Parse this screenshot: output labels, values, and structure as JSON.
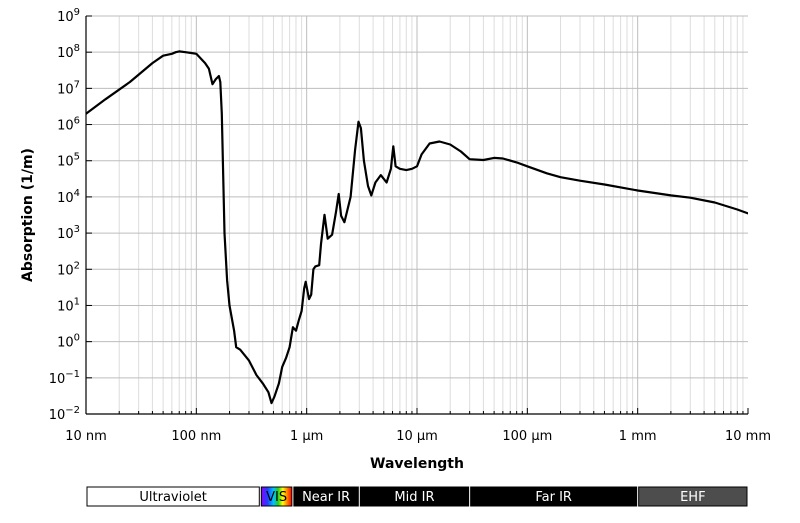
{
  "chart_data": {
    "type": "line",
    "xlabel": "Wavelength",
    "ylabel": "Absorption (1/m)",
    "x_scale": "log",
    "y_scale": "log",
    "x_unit": "m",
    "xlim": [
      1e-08,
      0.01
    ],
    "ylim": [
      0.01,
      1000000000.0
    ],
    "grid": true,
    "x_ticks": [
      {
        "value": 1e-08,
        "label": "10 nm"
      },
      {
        "value": 1e-07,
        "label": "100 nm"
      },
      {
        "value": 1e-06,
        "label": "1 μm"
      },
      {
        "value": 1e-05,
        "label": "10 μm"
      },
      {
        "value": 0.0001,
        "label": "100 μm"
      },
      {
        "value": 0.001,
        "label": "1 mm"
      },
      {
        "value": 0.01,
        "label": "10 mm"
      }
    ],
    "y_ticks": [
      {
        "value": 0.01,
        "base": "10",
        "exp": "−2"
      },
      {
        "value": 0.1,
        "base": "10",
        "exp": "−1"
      },
      {
        "value": 1.0,
        "base": "10",
        "exp": "0"
      },
      {
        "value": 10.0,
        "base": "10",
        "exp": "1"
      },
      {
        "value": 100.0,
        "base": "10",
        "exp": "2"
      },
      {
        "value": 1000.0,
        "base": "10",
        "exp": "3"
      },
      {
        "value": 10000.0,
        "base": "10",
        "exp": "4"
      },
      {
        "value": 100000.0,
        "base": "10",
        "exp": "5"
      },
      {
        "value": 1000000.0,
        "base": "10",
        "exp": "6"
      },
      {
        "value": 10000000.0,
        "base": "10",
        "exp": "7"
      },
      {
        "value": 100000000.0,
        "base": "10",
        "exp": "8"
      },
      {
        "value": 1000000000.0,
        "base": "10",
        "exp": "9"
      }
    ],
    "series": [
      {
        "color": "#000000",
        "points": [
          [
            1e-08,
            2000000.0
          ],
          [
            1.5e-08,
            5000000.0
          ],
          [
            2.5e-08,
            15000000.0
          ],
          [
            4e-08,
            50000000.0
          ],
          [
            5e-08,
            80000000.0
          ],
          [
            6e-08,
            90000000.0
          ],
          [
            6.5e-08,
            100000000.0
          ],
          [
            7e-08,
            105000000.0
          ],
          [
            8e-08,
            100000000.0
          ],
          [
            9e-08,
            95000000.0
          ],
          [
            1e-07,
            90000000.0
          ],
          [
            1.2e-07,
            50000000.0
          ],
          [
            1.3e-07,
            35000000.0
          ],
          [
            1.4e-07,
            13000000.0
          ],
          [
            1.5e-07,
            18000000.0
          ],
          [
            1.6e-07,
            22000000.0
          ],
          [
            1.65e-07,
            15000000.0
          ],
          [
            1.7e-07,
            2000000.0
          ],
          [
            1.8e-07,
            1000.0
          ],
          [
            1.9e-07,
            50
          ],
          [
            2e-07,
            10
          ],
          [
            2.2e-07,
            2
          ],
          [
            2.3e-07,
            0.7
          ],
          [
            2.5e-07,
            0.6
          ],
          [
            3e-07,
            0.3
          ],
          [
            3.5e-07,
            0.12
          ],
          [
            4e-07,
            0.07
          ],
          [
            4.5e-07,
            0.04
          ],
          [
            4.8e-07,
            0.02
          ],
          [
            5.1e-07,
            0.03
          ],
          [
            5.6e-07,
            0.07
          ],
          [
            6e-07,
            0.2
          ],
          [
            6.5e-07,
            0.35
          ],
          [
            7e-07,
            0.7
          ],
          [
            7.5e-07,
            2.5
          ],
          [
            8e-07,
            2.0
          ],
          [
            8.5e-07,
            4.0
          ],
          [
            9e-07,
            7.0
          ],
          [
            9.5e-07,
            30
          ],
          [
            9.8e-07,
            45
          ],
          [
            1.05e-06,
            15
          ],
          [
            1.1e-06,
            20
          ],
          [
            1.15e-06,
            100
          ],
          [
            1.2e-06,
            120
          ],
          [
            1.3e-06,
            130
          ],
          [
            1.35e-06,
            500
          ],
          [
            1.45e-06,
            3200
          ],
          [
            1.55e-06,
            700
          ],
          [
            1.7e-06,
            900
          ],
          [
            1.85e-06,
            4000
          ],
          [
            1.95e-06,
            12000
          ],
          [
            2.05e-06,
            3000
          ],
          [
            2.2e-06,
            2000
          ],
          [
            2.5e-06,
            10000
          ],
          [
            2.75e-06,
            200000
          ],
          [
            2.95e-06,
            1200000
          ],
          [
            3.1e-06,
            800000
          ],
          [
            3.3e-06,
            100000
          ],
          [
            3.6e-06,
            20000
          ],
          [
            3.85e-06,
            11000
          ],
          [
            4.2e-06,
            25000
          ],
          [
            4.7e-06,
            40000
          ],
          [
            5.3e-06,
            25000
          ],
          [
            5.8e-06,
            60000
          ],
          [
            6.1e-06,
            250000
          ],
          [
            6.4e-06,
            70000
          ],
          [
            7e-06,
            60000
          ],
          [
            8e-06,
            55000
          ],
          [
            9e-06,
            60000
          ],
          [
            1e-05,
            70000
          ],
          [
            1.1e-05,
            150000
          ],
          [
            1.3e-05,
            300000
          ],
          [
            1.6e-05,
            340000
          ],
          [
            2e-05,
            280000
          ],
          [
            2.5e-05,
            180000
          ],
          [
            3e-05,
            110000
          ],
          [
            4e-05,
            105000
          ],
          [
            5e-05,
            120000
          ],
          [
            6e-05,
            115000
          ],
          [
            8e-05,
            90000
          ],
          [
            0.0001,
            70000
          ],
          [
            0.00015,
            45000
          ],
          [
            0.0002,
            35000
          ],
          [
            0.0003,
            28000
          ],
          [
            0.0005,
            22000
          ],
          [
            0.001,
            15000
          ],
          [
            0.002,
            11000
          ],
          [
            0.003,
            9500
          ],
          [
            0.005,
            7000
          ],
          [
            0.008,
            4500
          ],
          [
            0.01,
            3500
          ]
        ]
      }
    ]
  },
  "spectrum_bands": [
    {
      "label": "Ultraviolet",
      "from": 1e-08,
      "to": 3.8e-07,
      "fill": "#ffffff",
      "text": "#000000"
    },
    {
      "label": "VIS",
      "from": 3.8e-07,
      "to": 7.5e-07,
      "fill": "rainbow",
      "text": "#000000"
    },
    {
      "label": "Near IR",
      "from": 7.5e-07,
      "to": 3e-06,
      "fill": "#000000",
      "text": "#ffffff"
    },
    {
      "label": "Mid IR",
      "from": 3e-06,
      "to": 3e-05,
      "fill": "#000000",
      "text": "#ffffff"
    },
    {
      "label": "Far IR",
      "from": 3e-05,
      "to": 0.001,
      "fill": "#000000",
      "text": "#ffffff"
    },
    {
      "label": "EHF",
      "from": 0.001,
      "to": 0.01,
      "fill": "#4d4d4d",
      "text": "#ffffff"
    }
  ]
}
